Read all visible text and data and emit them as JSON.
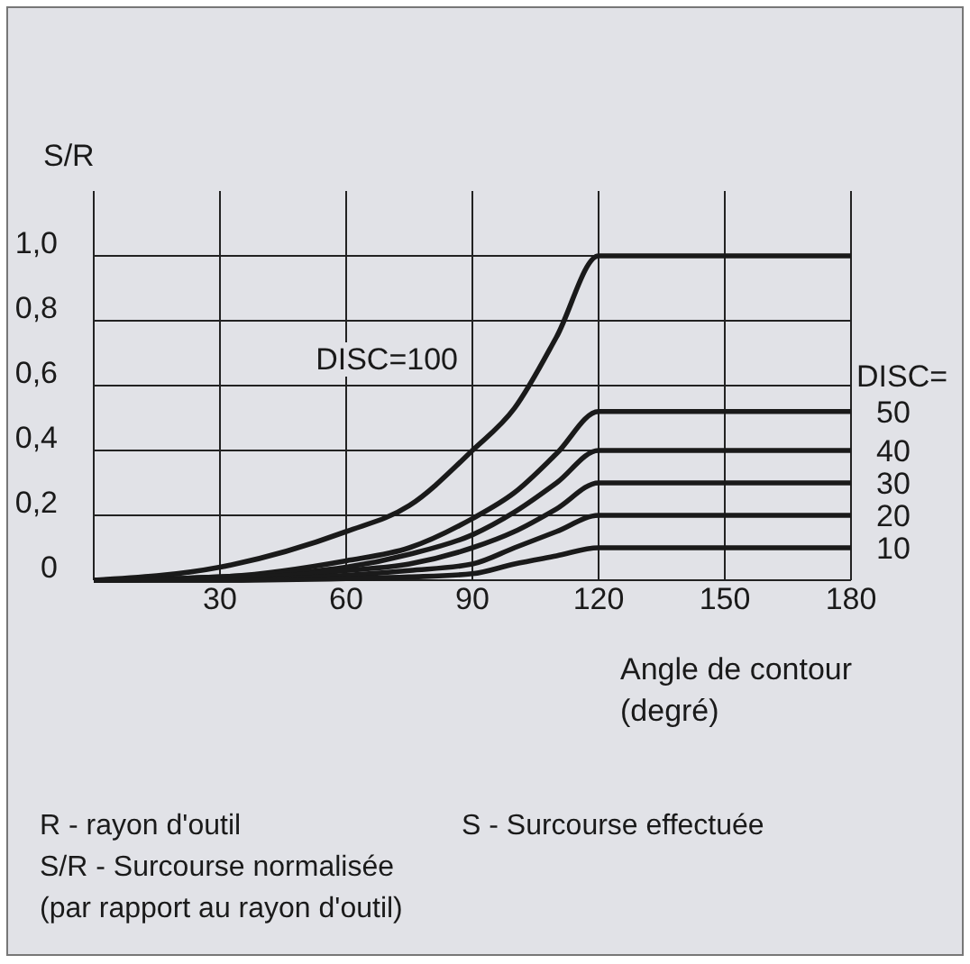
{
  "chart_data": {
    "type": "line",
    "ylabel": "S/R",
    "xlabel": "Angle de contour\n(degré)",
    "legend_title": "DISC=",
    "x": [
      0,
      30,
      60,
      75,
      90,
      100,
      110,
      120,
      180
    ],
    "series": [
      {
        "name": "DISC=100",
        "color": "#1a1a1a",
        "values": [
          0,
          0.04,
          0.15,
          0.23,
          0.4,
          0.53,
          0.75,
          1.0,
          1.0
        ]
      },
      {
        "name": "50",
        "color": "#1a1a1a",
        "values": [
          0,
          0.01,
          0.06,
          0.1,
          0.19,
          0.27,
          0.39,
          0.52,
          0.52
        ]
      },
      {
        "name": "40",
        "color": "#1a1a1a",
        "values": [
          0,
          0.01,
          0.04,
          0.08,
          0.14,
          0.21,
          0.3,
          0.4,
          0.4
        ]
      },
      {
        "name": "30",
        "color": "#1a1a1a",
        "values": [
          0,
          0.005,
          0.03,
          0.05,
          0.1,
          0.15,
          0.22,
          0.3,
          0.3
        ]
      },
      {
        "name": "20",
        "color": "#1a1a1a",
        "values": [
          0,
          0,
          0.015,
          0.03,
          0.05,
          0.1,
          0.15,
          0.2,
          0.2
        ]
      },
      {
        "name": "10",
        "color": "#1a1a1a",
        "values": [
          0,
          0,
          0.005,
          0.01,
          0.02,
          0.05,
          0.075,
          0.1,
          0.1
        ]
      }
    ],
    "xlim": [
      0,
      180
    ],
    "ylim": [
      0,
      1.2
    ],
    "xticks": [
      {
        "value": 0,
        "label": null
      },
      30,
      60,
      90,
      120,
      150,
      180
    ],
    "yticks": [
      0,
      {
        "value": 0.2,
        "label": "0,2"
      },
      {
        "value": 0.4,
        "label": "0,4"
      },
      {
        "value": 0.6,
        "label": "0,6"
      },
      {
        "value": 0.8,
        "label": "0,8"
      },
      {
        "value": 1.0,
        "label": "1,0"
      }
    ],
    "grid": true,
    "line_style": "solid",
    "marker": "none",
    "annotations": [
      "R - rayon d'outil",
      "S - Surcourse effectuée",
      "S/R - Surcourse normalisée",
      "(par rapport au rayon d'outil)"
    ]
  }
}
